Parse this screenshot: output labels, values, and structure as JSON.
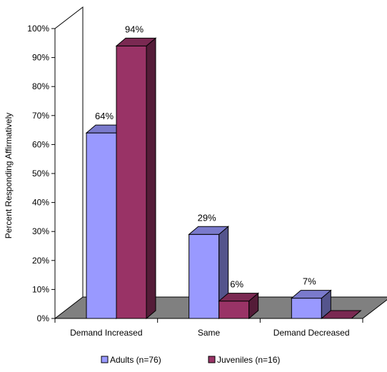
{
  "chart_data": {
    "type": "bar",
    "categories": [
      "Demand Increased",
      "Same",
      "Demand Decreased"
    ],
    "series": [
      {
        "name": "Adults (n=76)",
        "values": [
          64,
          29,
          7
        ],
        "labels": [
          "64%",
          "29%",
          "7%"
        ],
        "color": "#9999ff"
      },
      {
        "name": "Juveniles (n=16)",
        "values": [
          94,
          6,
          0
        ],
        "labels": [
          "94%",
          "6%",
          ""
        ],
        "color": "#993366"
      }
    ],
    "ylabel": "Percent Responding Affirmatively",
    "ylim": [
      0,
      100
    ],
    "yticks": [
      "0%",
      "10%",
      "20%",
      "30%",
      "40%",
      "50%",
      "60%",
      "70%",
      "80%",
      "90%",
      "100%"
    ],
    "grid": false,
    "legend_position": "bottom",
    "floor_color": "#808080"
  }
}
